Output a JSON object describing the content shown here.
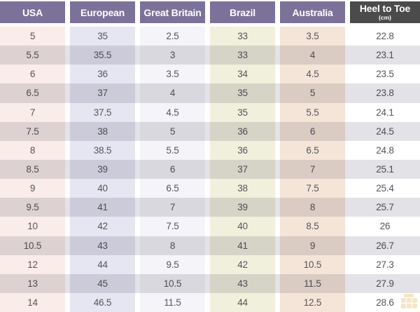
{
  "table": {
    "columns": [
      {
        "key": "usa",
        "label": "USA",
        "header_bg": "#7b7199",
        "band": "#f9ece9"
      },
      {
        "key": "european",
        "label": "European",
        "header_bg": "#7b7199",
        "band": "#e6e5f2"
      },
      {
        "key": "great-britain",
        "label": "Great Britain",
        "header_bg": "#7b7199",
        "band": "#f5f4f8"
      },
      {
        "key": "brazil",
        "label": "Brazil",
        "header_bg": "#7b7199",
        "band": "#f0f0dd"
      },
      {
        "key": "australia",
        "label": "Australia",
        "header_bg": "#7b7199",
        "band": "#f5e5d9"
      },
      {
        "key": "heel-to-toe",
        "label": "Heel to Toe",
        "sub": "(cm)",
        "header_bg": "#4b4b4b",
        "band": "#ffffff"
      }
    ],
    "rows": [
      [
        "5",
        "35",
        "2.5",
        "33",
        "3.5",
        "22.8"
      ],
      [
        "5.5",
        "35.5",
        "3",
        "33",
        "4",
        "23.1"
      ],
      [
        "6",
        "36",
        "3.5",
        "34",
        "4.5",
        "23.5"
      ],
      [
        "6.5",
        "37",
        "4",
        "35",
        "5",
        "23.8"
      ],
      [
        "7",
        "37.5",
        "4.5",
        "35",
        "5.5",
        "24.1"
      ],
      [
        "7.5",
        "38",
        "5",
        "36",
        "6",
        "24.5"
      ],
      [
        "8",
        "38.5",
        "5.5",
        "36",
        "6.5",
        "24.8"
      ],
      [
        "8.5",
        "39",
        "6",
        "37",
        "7",
        "25.1"
      ],
      [
        "9",
        "40",
        "6.5",
        "38",
        "7.5",
        "25.4"
      ],
      [
        "9.5",
        "41",
        "7",
        "39",
        "8",
        "25.7"
      ],
      [
        "10",
        "42",
        "7.5",
        "40",
        "8.5",
        "26"
      ],
      [
        "10.5",
        "43",
        "8",
        "41",
        "9",
        "26.7"
      ],
      [
        "12",
        "44",
        "9.5",
        "42",
        "10.5",
        "27.3"
      ],
      [
        "13",
        "45",
        "10.5",
        "43",
        "11.5",
        "27.9"
      ],
      [
        "14",
        "46.5",
        "11.5",
        "44",
        "12.5",
        "28.6"
      ]
    ]
  },
  "colors": {
    "header_purple": "#7b7199",
    "header_dark": "#4b4b4b",
    "header_text": "#ffffff",
    "row_stripe": "#e3e2e6",
    "cell_text": "#56555b",
    "watermark": "#e0a33e"
  },
  "icons": {
    "watermark": "watermark-icon"
  }
}
